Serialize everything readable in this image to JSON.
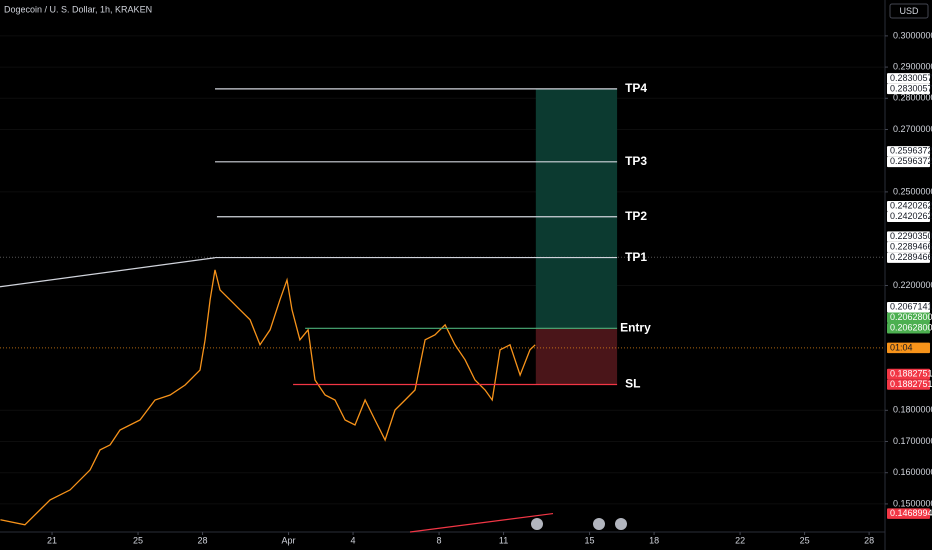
{
  "chart_data": {
    "type": "line",
    "title": "Dogecoin / U. S. Dollar, 1h, KRAKEN",
    "currency": "USD",
    "color": "#f7931a",
    "x": [
      -2.4,
      -1.26,
      -0.09,
      0.84,
      1.77,
      2.23,
      2.7,
      3.16,
      4.09,
      4.79,
      5.49,
      6.19,
      6.88,
      7.12,
      7.35,
      7.58,
      7.81,
      8.28,
      8.74,
      9.21,
      9.67,
      10.14,
      10.6,
      10.93,
      11.16,
      11.53,
      11.91,
      12.23,
      12.7,
      13.16,
      13.63,
      14.09,
      14.56,
      15.02,
      15.49,
      15.95,
      16.42,
      16.88,
      17.35,
      17.81,
      18.28,
      18.74,
      19.21,
      19.67,
      20.14,
      20.47,
      20.84,
      21.3,
      21.77,
      22.23,
      22.47
    ],
    "values": [
      0.1449,
      0.1433,
      0.1513,
      0.1545,
      0.1609,
      0.1673,
      0.1689,
      0.1737,
      0.1769,
      0.1833,
      0.1849,
      0.1881,
      0.1929,
      0.2026,
      0.2154,
      0.225,
      0.2186,
      0.2154,
      0.2122,
      0.209,
      0.201,
      0.2058,
      0.2154,
      0.2218,
      0.2122,
      0.2026,
      0.2058,
      0.1897,
      0.1849,
      0.1833,
      0.1769,
      0.1753,
      0.1833,
      0.1769,
      0.1705,
      0.1801,
      0.1833,
      0.1865,
      0.2026,
      0.2042,
      0.2074,
      0.201,
      0.1962,
      0.1897,
      0.1865,
      0.1833,
      0.1994,
      0.201,
      0.1913,
      0.1994,
      0.201
    ],
    "xlim": [
      -2.42,
      38.74
    ],
    "ylim": [
      0.141,
      0.3115
    ],
    "xticks": [
      {
        "value": 0,
        "label": "21"
      },
      {
        "value": 4,
        "label": "25"
      },
      {
        "value": 7,
        "label": "28"
      },
      {
        "value": 11,
        "label": "Apr"
      },
      {
        "value": 14,
        "label": "4"
      },
      {
        "value": 18,
        "label": "8"
      },
      {
        "value": 21,
        "label": "11"
      },
      {
        "value": 25,
        "label": "15"
      },
      {
        "value": 28,
        "label": "18"
      },
      {
        "value": 32,
        "label": "22"
      },
      {
        "value": 35,
        "label": "25"
      },
      {
        "value": 38,
        "label": "28"
      }
    ],
    "yticks": [
      {
        "value": 0.3,
        "label": "0.3000000"
      },
      {
        "value": 0.29,
        "label": "0.2900000"
      },
      {
        "value": 0.28,
        "label": "0.2800000"
      },
      {
        "value": 0.27,
        "label": "0.2700000"
      },
      {
        "value": 0.25,
        "label": "0.2500000"
      },
      {
        "value": 0.22,
        "label": "0.2200000"
      },
      {
        "value": 0.18,
        "label": "0.1800000"
      },
      {
        "value": 0.17,
        "label": "0.1700000"
      },
      {
        "value": 0.16,
        "label": "0.1600000"
      },
      {
        "value": 0.15,
        "label": "0.1500000"
      }
    ],
    "levels": [
      {
        "label": "TP4",
        "value": 0.2830057,
        "start": 7.58,
        "end": 26.28,
        "color": "#d1d4dc"
      },
      {
        "label": "TP3",
        "value": 0.2596372,
        "start": 7.58,
        "end": 26.28,
        "color": "#d1d4dc"
      },
      {
        "label": "TP2",
        "value": 0.2420262,
        "start": 7.67,
        "end": 26.28,
        "color": "#d1d4dc"
      },
      {
        "label": "TP1",
        "value": 0.2289466,
        "start": 7.58,
        "end": 26.28,
        "color": "#d1d4dc"
      },
      {
        "label": "Entry",
        "value": 0.20628,
        "start": 11.77,
        "end": 26.28,
        "color": "#4caf7a"
      },
      {
        "label": "SL",
        "value": 0.1882751,
        "start": 11.21,
        "end": 26.28,
        "color": "#f23645"
      }
    ],
    "position_box": {
      "start": 22.5,
      "end": 26.28,
      "profit_color": "#0c3a30",
      "loss_color": "#4a1519"
    },
    "trendlines": [
      {
        "x": [
          -2.42,
          7.58
        ],
        "values": [
          0.2196,
          0.2289
        ],
        "color": "#d1d4dc"
      },
      {
        "x": [
          16.65,
          23.3
        ],
        "values": [
          0.141,
          0.1469
        ],
        "color": "#f23645"
      }
    ],
    "price_labels": [
      {
        "value": 0.2830057,
        "label": "0.2830057",
        "bg": "#ffffff",
        "fg": "#131722"
      },
      {
        "value": 0.2830057,
        "label": "0.2830057",
        "bg": "#ffffff",
        "fg": "#131722"
      },
      {
        "value": 0.2596372,
        "label": "0.2596372",
        "bg": "#ffffff",
        "fg": "#131722"
      },
      {
        "value": 0.2596372,
        "label": "0.2596372",
        "bg": "#ffffff",
        "fg": "#131722"
      },
      {
        "value": 0.2420262,
        "label": "0.2420262",
        "bg": "#ffffff",
        "fg": "#131722"
      },
      {
        "value": 0.2420262,
        "label": "0.2420262",
        "bg": "#ffffff",
        "fg": "#131722"
      },
      {
        "value": 0.229035,
        "label": "0.2290350",
        "bg": "#ffffff",
        "fg": "#131722"
      },
      {
        "value": 0.2289466,
        "label": "0.2289466",
        "bg": "#ffffff",
        "fg": "#131722"
      },
      {
        "value": 0.2289466,
        "label": "0.2289466",
        "bg": "#ffffff",
        "fg": "#131722"
      },
      {
        "value": 0.2067141,
        "label": "0.2067141",
        "bg": "#ffffff",
        "fg": "#131722"
      },
      {
        "value": 0.20628,
        "label": "0.2062800",
        "bg": "#4caf50",
        "fg": "#ffffff"
      },
      {
        "value": 0.20628,
        "label": "0.2062800",
        "bg": "#4caf50",
        "fg": "#ffffff"
      },
      {
        "value": 0.2,
        "label": "01:04",
        "bg": "#f7931a",
        "fg": "#131722"
      },
      {
        "value": 0.1882751,
        "label": "0.1882751",
        "bg": "#f23645",
        "fg": "#ffffff"
      },
      {
        "value": 0.1882751,
        "label": "0.1882751",
        "bg": "#f23645",
        "fg": "#ffffff"
      },
      {
        "value": 0.1468994,
        "label": "0.1468994",
        "bg": "#f23645",
        "fg": "#ffffff"
      }
    ]
  }
}
